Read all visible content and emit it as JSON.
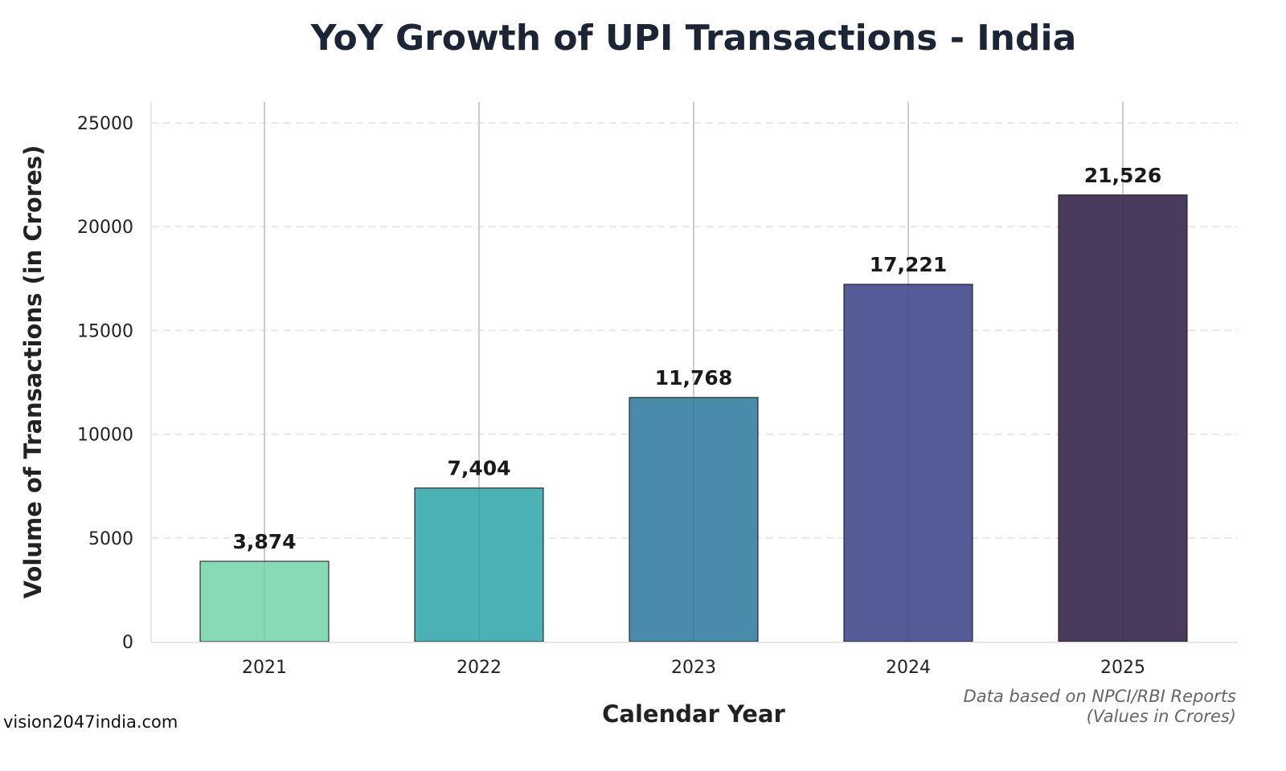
{
  "chart_data": {
    "type": "bar",
    "title": "YoY Growth of UPI Transactions - India",
    "xlabel": "Calendar Year",
    "ylabel": "Volume of Transactions (in Crores)",
    "categories": [
      "2021",
      "2022",
      "2023",
      "2024",
      "2025"
    ],
    "values": [
      3874,
      7404,
      11768,
      17221,
      21526
    ],
    "value_labels": [
      "3,874",
      "7,404",
      "11,768",
      "17,221",
      "21,526"
    ],
    "colors": [
      "#87dab5",
      "#4bb1b4",
      "#4a8aab",
      "#545b97",
      "#4a3a5b"
    ],
    "ylim": [
      0,
      25000
    ],
    "yticks": [
      0,
      5000,
      10000,
      15000,
      20000,
      25000
    ],
    "ytick_labels": [
      "0",
      "5000",
      "10000",
      "15000",
      "20000",
      "25000"
    ],
    "grid": true,
    "legend": null,
    "annotation": {
      "line1": "Data based on NPCI/RBI Reports",
      "line2": "(Values in Crores)"
    }
  },
  "watermark": "vision2047india.com"
}
